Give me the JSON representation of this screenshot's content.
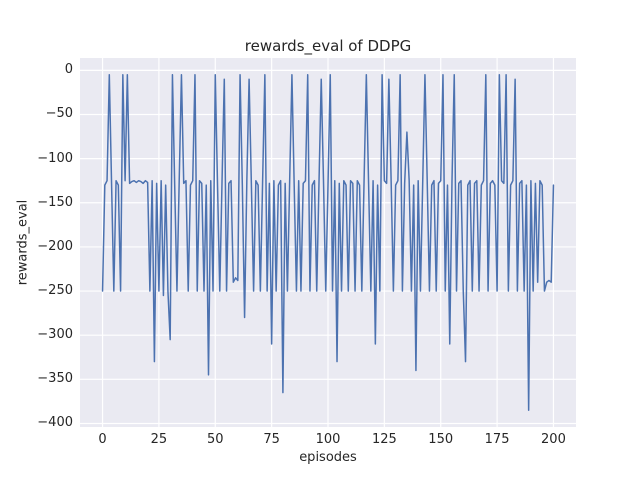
{
  "chart_data": {
    "type": "line",
    "title": "rewards_eval of DDPG",
    "xlabel": "episodes",
    "ylabel": "rewards_eval",
    "series_name": "rewards_eval",
    "x_start": 0,
    "x_step": 1,
    "values": [
      -250,
      -130,
      -125,
      -5,
      -128,
      -250,
      -125,
      -130,
      -250,
      -5,
      -125,
      -5,
      -128,
      -126,
      -125,
      -127,
      -125,
      -126,
      -128,
      -125,
      -127,
      -250,
      -125,
      -330,
      -128,
      -250,
      -125,
      -255,
      -130,
      -250,
      -305,
      -5,
      -130,
      -250,
      -125,
      -5,
      -128,
      -125,
      -250,
      -130,
      -125,
      -5,
      -250,
      -125,
      -128,
      -250,
      -130,
      -345,
      -125,
      -250,
      -5,
      -130,
      -250,
      -125,
      -10,
      -250,
      -128,
      -125,
      -240,
      -235,
      -238,
      -5,
      -130,
      -280,
      -125,
      -10,
      -128,
      -250,
      -125,
      -130,
      -250,
      -125,
      -5,
      -250,
      -128,
      -310,
      -125,
      -250,
      -130,
      -125,
      -365,
      -128,
      -250,
      -125,
      -5,
      -130,
      -250,
      -125,
      -250,
      -128,
      -125,
      -5,
      -250,
      -130,
      -125,
      -250,
      -128,
      -10,
      -125,
      -250,
      -130,
      -5,
      -250,
      -125,
      -330,
      -128,
      -250,
      -125,
      -130,
      -250,
      -125,
      -128,
      -250,
      -125,
      -130,
      -250,
      -125,
      -5,
      -128,
      -250,
      -125,
      -310,
      -130,
      -250,
      -5,
      -125,
      -128,
      -10,
      -125,
      -250,
      -130,
      -125,
      -5,
      -250,
      -128,
      -70,
      -125,
      -250,
      -130,
      -340,
      -125,
      -250,
      -128,
      -5,
      -125,
      -250,
      -130,
      -125,
      -250,
      -128,
      -125,
      -5,
      -250,
      -130,
      -310,
      -125,
      -5,
      -250,
      -128,
      -125,
      -250,
      -330,
      -130,
      -125,
      -250,
      -128,
      -125,
      -250,
      -130,
      -125,
      -5,
      -250,
      -128,
      -125,
      -130,
      -250,
      -5,
      -125,
      -128,
      -5,
      -250,
      -130,
      -125,
      -10,
      -250,
      -128,
      -125,
      -250,
      -130,
      -385,
      -125,
      -250,
      -128,
      -240,
      -125,
      -130,
      -250,
      -240,
      -238,
      -240,
      -130
    ],
    "xlim": [
      -10,
      210
    ],
    "ylim": [
      -404,
      14
    ],
    "xticks": [
      0,
      25,
      50,
      75,
      100,
      125,
      150,
      175,
      200
    ],
    "xtick_labels": [
      "0",
      "25",
      "50",
      "75",
      "100",
      "125",
      "150",
      "175",
      "200"
    ],
    "yticks": [
      0,
      -50,
      -100,
      -150,
      -200,
      -250,
      -300,
      -350,
      -400
    ],
    "ytick_labels": [
      "0",
      "−50",
      "−100",
      "−150",
      "−200",
      "−250",
      "−300",
      "−350",
      "−400"
    ],
    "grid": true,
    "legend": "none",
    "line_color": "#4c72b0",
    "grid_color": "#ffffff",
    "axes_background": "#eaeaf2",
    "figure_background": "#ffffff",
    "text_color": "#262626"
  }
}
